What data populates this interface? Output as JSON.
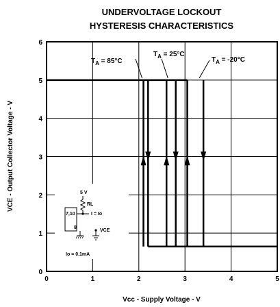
{
  "chart_data": {
    "type": "line",
    "title_line1": "UNDERVOLTAGE LOCKOUT",
    "title_line2": "HYSTERESIS CHARACTERISTICS",
    "xlabel": "Vcc - Supply Voltage - V",
    "ylabel": "VCE - Output Collector Voltage - V",
    "xlim": [
      0,
      5
    ],
    "ylim": [
      0,
      6
    ],
    "xticks": [
      "0",
      "1",
      "2",
      "3",
      "4",
      "5"
    ],
    "yticks": [
      "0",
      "1",
      "2",
      "3",
      "4",
      "5",
      "6"
    ],
    "grid": true,
    "high_level": 5.0,
    "low_level": 0.65,
    "series": [
      {
        "name": "TA = 85°C",
        "x_falling": 2.1,
        "x_rising": 2.2,
        "label_prefix": "T",
        "label_sub": "A",
        "label_suffix": " = 85°C"
      },
      {
        "name": "TA = 25°C",
        "x_falling": 2.6,
        "x_rising": 2.8,
        "label_prefix": "T",
        "label_sub": "A",
        "label_suffix": " = 25°C"
      },
      {
        "name": "TA = -20°C",
        "x_falling": 3.05,
        "x_rising": 3.4,
        "label_prefix": "T",
        "label_sub": "A",
        "label_suffix": " = -20°C"
      }
    ],
    "inset": {
      "supply": "5 V",
      "resistor": "RL",
      "pins_top": "7,10",
      "current": "I = Io",
      "pin_bottom": "8",
      "output": "VCE",
      "condition": "Io = 0.1mA"
    }
  }
}
